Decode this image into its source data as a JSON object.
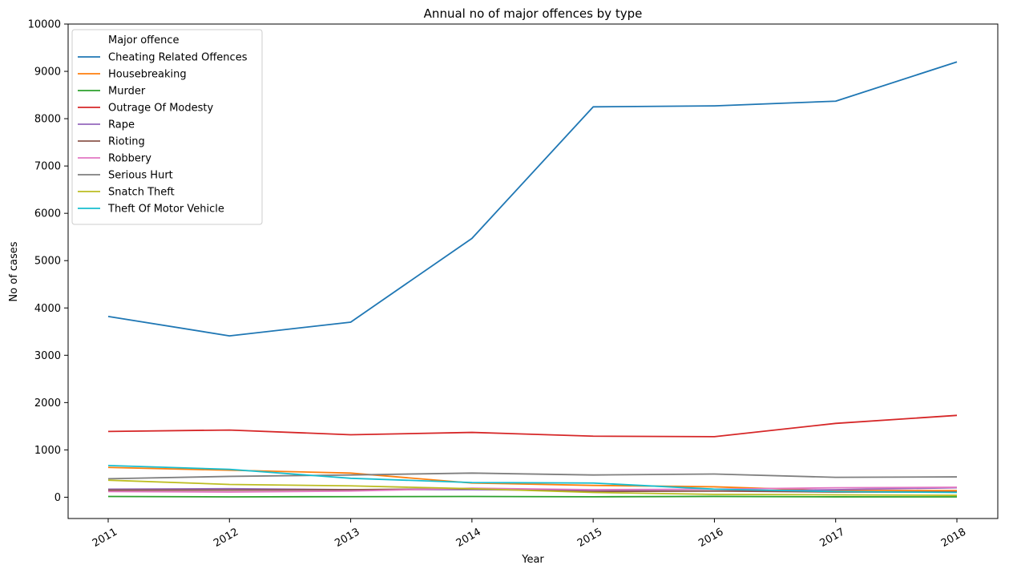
{
  "chart_data": {
    "type": "line",
    "title": "Annual no of major offences by type",
    "xlabel": "Year",
    "ylabel": "No of cases",
    "x": [
      "2011",
      "2012",
      "2013",
      "2014",
      "2015",
      "2016",
      "2017",
      "2018"
    ],
    "ylim": [
      -450,
      10000
    ],
    "yticks": [
      0,
      1000,
      2000,
      3000,
      4000,
      5000,
      6000,
      7000,
      8000,
      9000,
      10000
    ],
    "grid": false,
    "legend": {
      "title": "Major offence",
      "placement": "top-left"
    },
    "series": [
      {
        "name": "Cheating Related Offences",
        "color": "#1f77b4",
        "values": [
          3820,
          3410,
          3700,
          5470,
          8250,
          8270,
          8370,
          9200
        ]
      },
      {
        "name": "Housebreaking",
        "color": "#ff7f0e",
        "values": [
          630,
          570,
          510,
          300,
          250,
          220,
          140,
          140
        ]
      },
      {
        "name": "Murder",
        "color": "#2ca02c",
        "values": [
          16,
          7,
          12,
          16,
          9,
          17,
          8,
          7
        ]
      },
      {
        "name": "Outrage Of Modesty",
        "color": "#d62728",
        "values": [
          1390,
          1420,
          1320,
          1370,
          1290,
          1280,
          1560,
          1730
        ]
      },
      {
        "name": "Rape",
        "color": "#9467bd",
        "values": [
          170,
          180,
          160,
          160,
          140,
          130,
          160,
          200
        ]
      },
      {
        "name": "Rioting",
        "color": "#8c564b",
        "values": [
          150,
          150,
          160,
          180,
          120,
          130,
          110,
          110
        ]
      },
      {
        "name": "Robbery",
        "color": "#e377c2",
        "values": [
          120,
          110,
          130,
          190,
          160,
          170,
          200,
          210
        ]
      },
      {
        "name": "Serious Hurt",
        "color": "#7f7f7f",
        "values": [
          390,
          440,
          470,
          510,
          470,
          490,
          420,
          430
        ]
      },
      {
        "name": "Snatch Theft",
        "color": "#bcbd22",
        "values": [
          360,
          270,
          240,
          180,
          100,
          60,
          50,
          40
        ]
      },
      {
        "name": "Theft Of Motor Vehicle",
        "color": "#17becf",
        "values": [
          670,
          590,
          400,
          310,
          300,
          170,
          120,
          100
        ]
      }
    ]
  }
}
